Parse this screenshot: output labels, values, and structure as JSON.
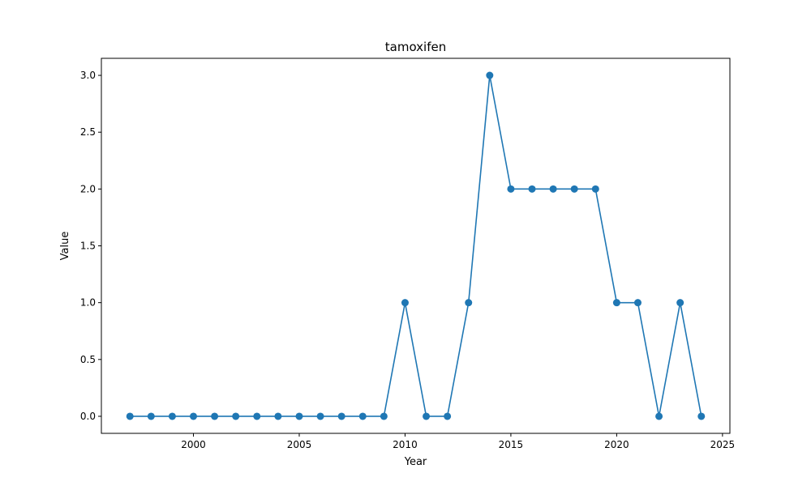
{
  "chart_data": {
    "type": "line",
    "title": "tamoxifen",
    "xlabel": "Year",
    "ylabel": "Value",
    "x": [
      1997,
      1998,
      1999,
      2000,
      2001,
      2002,
      2003,
      2004,
      2005,
      2006,
      2007,
      2008,
      2009,
      2010,
      2011,
      2012,
      2013,
      2014,
      2015,
      2016,
      2017,
      2018,
      2019,
      2020,
      2021,
      2022,
      2023,
      2024
    ],
    "series": [
      {
        "values": [
          0,
          0,
          0,
          0,
          0,
          0,
          0,
          0,
          0,
          0,
          0,
          0,
          0,
          1,
          0,
          0,
          1,
          3,
          2,
          2,
          2,
          2,
          2,
          1,
          1,
          0,
          1,
          0
        ],
        "color": "#1f77b4",
        "marker": "circle"
      }
    ],
    "xlim": [
      1995.65,
      2025.35
    ],
    "ylim": [
      -0.15,
      3.15
    ],
    "xticks": [
      2000,
      2005,
      2010,
      2015,
      2020,
      2025
    ],
    "xtick_labels": [
      "2000",
      "2005",
      "2010",
      "2015",
      "2020",
      "2025"
    ],
    "yticks": [
      0,
      0.5,
      1,
      1.5,
      2,
      2.5,
      3
    ],
    "ytick_labels": [
      "0.0",
      "0.5",
      "1.0",
      "1.5",
      "2.0",
      "2.5",
      "3.0"
    ],
    "grid": false,
    "legend": "none"
  }
}
